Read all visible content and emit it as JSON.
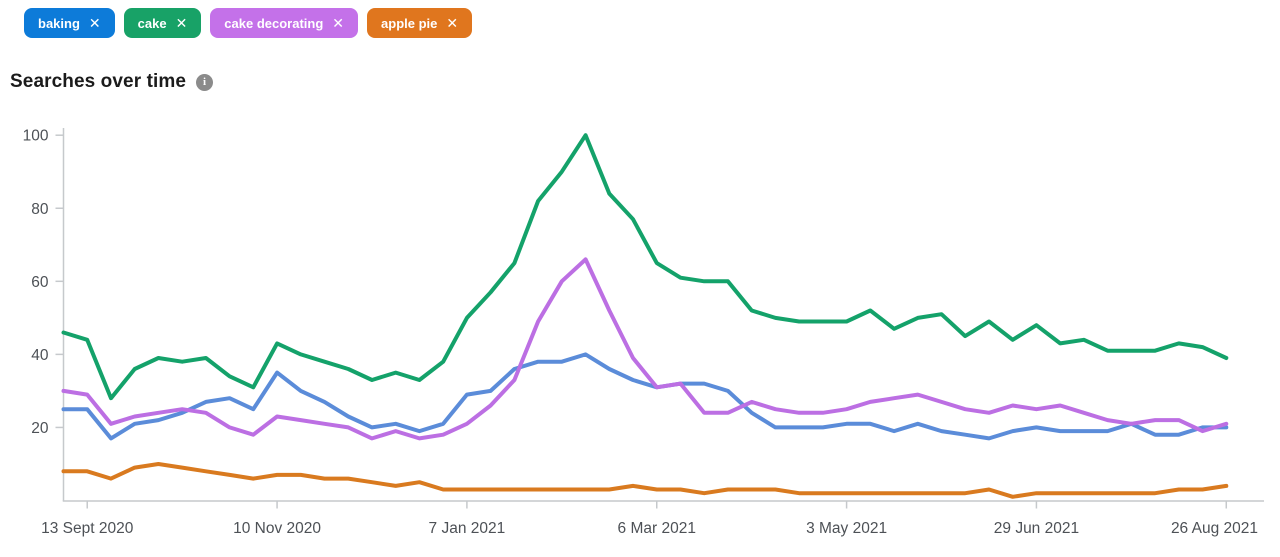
{
  "filters": {
    "tags": [
      {
        "label": "baking",
        "remove_icon": "✕",
        "color": "#0d7bd9"
      },
      {
        "label": "cake",
        "remove_icon": "✕",
        "color": "#18a267"
      },
      {
        "label": "cake decorating",
        "remove_icon": "✕",
        "color": "#c471e9"
      },
      {
        "label": "apple pie",
        "remove_icon": "✕",
        "color": "#e0761e"
      }
    ]
  },
  "section": {
    "title": "Searches over time",
    "info_icon_glyph": "i"
  },
  "chart_data": {
    "type": "line",
    "title": "Searches over time",
    "xlabel": "",
    "ylabel": "",
    "ylim": [
      0,
      100
    ],
    "y_ticks": [
      20,
      40,
      60,
      80,
      100
    ],
    "grid": false,
    "legend_position": "none (series keyed to colored filter tags above chart)",
    "num_points": 50,
    "x_tick_labels": [
      "13 Sept 2020",
      "10 Nov 2020",
      "7 Jan 2021",
      "6 Mar 2021",
      "3 May 2021",
      "29 Jun 2021",
      "26 Aug 2021"
    ],
    "x_tick_point_indices": [
      1,
      9,
      17,
      25,
      33,
      41,
      49
    ],
    "axis_color": "#c6c9cc",
    "tick_label_color": "#4d5156",
    "series": [
      {
        "name": "baking",
        "color": "#5b8cd9",
        "values": [
          25,
          25,
          17,
          21,
          22,
          24,
          27,
          28,
          25,
          35,
          30,
          27,
          23,
          20,
          21,
          19,
          21,
          29,
          30,
          36,
          38,
          38,
          40,
          36,
          33,
          31,
          32,
          32,
          30,
          24,
          20,
          20,
          20,
          21,
          21,
          19,
          21,
          19,
          18,
          17,
          19,
          20,
          19,
          19,
          19,
          21,
          18,
          18,
          20,
          20
        ]
      },
      {
        "name": "cake",
        "color": "#14a26a",
        "values": [
          46,
          44,
          28,
          36,
          39,
          38,
          39,
          34,
          31,
          43,
          40,
          38,
          36,
          33,
          35,
          33,
          38,
          50,
          57,
          65,
          82,
          90,
          100,
          84,
          77,
          65,
          61,
          60,
          60,
          52,
          50,
          49,
          49,
          49,
          52,
          47,
          50,
          51,
          45,
          49,
          44,
          48,
          43,
          44,
          41,
          41,
          41,
          43,
          42,
          39
        ]
      },
      {
        "name": "cake decorating",
        "color": "#bc6fe3",
        "values": [
          30,
          29,
          21,
          23,
          24,
          25,
          24,
          20,
          18,
          23,
          22,
          21,
          20,
          17,
          19,
          17,
          18,
          21,
          26,
          33,
          49,
          60,
          66,
          52,
          39,
          31,
          32,
          24,
          24,
          27,
          25,
          24,
          24,
          25,
          27,
          28,
          29,
          27,
          25,
          24,
          26,
          25,
          26,
          24,
          22,
          21,
          22,
          22,
          19,
          21
        ]
      },
      {
        "name": "apple pie",
        "color": "#d97a1f",
        "values": [
          8,
          8,
          6,
          9,
          10,
          9,
          8,
          7,
          6,
          7,
          7,
          6,
          6,
          5,
          4,
          5,
          3,
          3,
          3,
          3,
          3,
          3,
          3,
          3,
          4,
          3,
          3,
          2,
          3,
          3,
          3,
          2,
          2,
          2,
          2,
          2,
          2,
          2,
          2,
          3,
          1,
          2,
          2,
          2,
          2,
          2,
          2,
          3,
          3,
          4
        ]
      }
    ]
  }
}
